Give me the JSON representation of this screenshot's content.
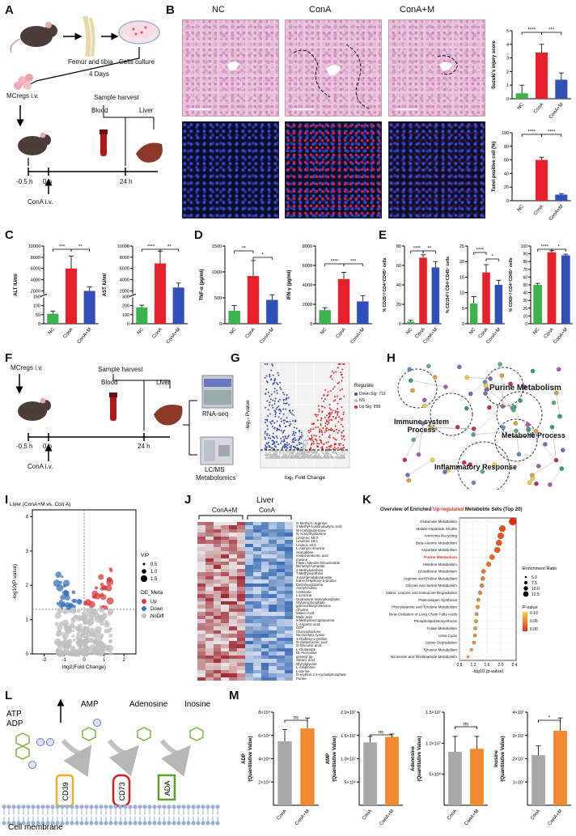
{
  "colors": {
    "nc": "#3cb44b",
    "cona": "#e8202a",
    "conam": "#3050b8",
    "up": "#d83a3a",
    "down": "#3a70b8",
    "gray": "#b0b0b0",
    "orange": "#f08a30",
    "graybar": "#a8a8a8"
  },
  "panels": {
    "A": "A",
    "B": "B",
    "C": "C",
    "D": "D",
    "E": "E",
    "F": "F",
    "G": "G",
    "H": "H",
    "I": "I",
    "J": "J",
    "K": "K",
    "L": "L",
    "M": "M"
  },
  "a": {
    "femur": "Femur and tibia",
    "culture": "Cells culture",
    "days": "4 Days",
    "mcregs": "MCregs i.v.",
    "harvest": "Sample harvest",
    "blood": "Blood",
    "liver": "Liver",
    "t1": "-0.5 h",
    "t2": "0 h",
    "t3": "24 h",
    "cona": "ConA  i.v."
  },
  "b": {
    "nc": "NC",
    "cona": "ConA",
    "conam": "ConA+M",
    "ylab1": "Suzuki's injury score",
    "ylab2": "Tunel positive cell (%)",
    "sig1": "****",
    "sig2": "***",
    "sig3": "****",
    "sig4": "****",
    "cats": [
      "NC",
      "ConA",
      "ConA+M"
    ],
    "ticks1": [
      "0",
      "1",
      "2",
      "3",
      "4",
      "5"
    ],
    "ticks2": [
      "0",
      "20",
      "40",
      "60",
      "80",
      "100"
    ]
  },
  "c": {
    "ylab1": "ALT IU/ml",
    "ylab2": "AST IU/ml",
    "ticks1": [
      "0",
      "50",
      "100",
      "150",
      "2000",
      "4000",
      "6000",
      "8000",
      "10000"
    ],
    "ticks2": [
      "0",
      "100",
      "200",
      "300",
      "2000",
      "4000",
      "6000",
      "8000",
      "10000"
    ],
    "s1": "***",
    "s2": "**",
    "s3": "****",
    "s4": "**",
    "cats": [
      "NC",
      "ConA",
      "ConA+M"
    ]
  },
  "d": {
    "ylab1": "TNF-α (pg/ml)",
    "ylab2": "IFN-γ (pg/ml)",
    "ticks1": [
      "0",
      "500",
      "1000",
      "1500"
    ],
    "ticks2": [
      "0",
      "2000",
      "4000",
      "6000",
      "8000"
    ],
    "s1": "**",
    "s2": "*",
    "s3": "****",
    "s4": "***",
    "cats": [
      "NC",
      "ConA",
      "ConA+M"
    ]
  },
  "e": {
    "ylab1": "% CD25⁺/ CD4⁺CD45⁺ cells",
    "ylab2": "% CD154⁺/ CD4⁺CD45⁺ cells",
    "ylab3": "% CD69⁺/ CD4⁺CD45⁺ cells",
    "ticks1": [
      "0",
      "20",
      "40",
      "60",
      "80"
    ],
    "ticks2": [
      "0",
      "5",
      "10",
      "15",
      "20",
      "25"
    ],
    "ticks3": [
      "0",
      "10",
      "20",
      "30",
      "40",
      "50",
      "60",
      "70",
      "80",
      "90",
      "100"
    ],
    "s1": "****",
    "s2": "**",
    "s3": "****",
    "s4": "*",
    "s5": "****",
    "s6": "*",
    "cats": [
      "NC",
      "ConA",
      "ConA+M"
    ]
  },
  "f": {
    "mcregs": "MCregs i.v.",
    "harvest": "Sample harvest",
    "blood": "Blood",
    "liver": "Liver",
    "t1": "-0.5 h",
    "t2": "0 h",
    "t3": "24 h",
    "cona": "ConA  i.v.",
    "rnaseq": "RNA-seq",
    "lcms1": "LC/MS",
    "lcms2": "Metabolomics"
  },
  "g": {
    "ylab": "-log₁₀ Pvalue",
    "xlab": "log₂ Fold Change",
    "legend_title": "Regulate",
    "down": "Down Sig: 713",
    "ns": "NS",
    "upsig": "Up Sig: 898"
  },
  "h": {
    "purine": "Purine Metabolism",
    "immune1": "Immune system",
    "immune2": "Process",
    "metabolic": "Metabolic Process",
    "inflam": "Inflammatory Response"
  },
  "i": {
    "title": "Liver (ConA+M vs. Con A)",
    "ylab": "-log10(P-value)",
    "xlab": "log2(Fold Change)",
    "vip": "VIP",
    "vip_vals": [
      "0.5",
      "1.0",
      "1.5"
    ],
    "de": "DE_Meta",
    "up": "Up",
    "down": "Down",
    "nodiff": "NoDiff",
    "xticks": [
      "-2",
      "-1",
      "0",
      "1",
      "2"
    ],
    "yticks": [
      "0",
      "1",
      "2",
      "3",
      "4"
    ]
  },
  "j": {
    "title": "Liver",
    "g1": "ConA+M",
    "g2": "ConA",
    "metabolites": [
      "N-Methyl-L-arginine",
      "2-Methyl-4-aminobutyric acid",
      "N-Acetylputrescine",
      "N-Acetyltryptamine",
      "Linolenic 18:3",
      "Linolenic 16:1",
      "Linoleic 18:2",
      "L-Alanyl-L-leucine",
      "Isomaltose",
      "Imidazoleacetic acid",
      "Inosine",
      "Flavin Adenine Dinucleotide",
      "Dimethyl fumarate",
      "3-Methylxanthine",
      "7-Methylxanthine",
      "4-Acetamidobutanoate",
      "trans-3-Hydroxy-L-proline",
      "Cyclohexylamine",
      "Acetylcholine",
      "Cortisone",
      "L-Leucine",
      "Guanosine monophosphate",
      "Glycerophosphate",
      "gamma-Butyrolactone",
      "Choline",
      "Maleic Acid",
      "Malic acid",
      "6-Methylmercaptopurine",
      "L-Aspartic acid",
      "CDP",
      "Gluconolactone",
      "N6-Acetyl-L-lysine",
      "4-Hydroxy-L-proline",
      "D-Galacturonic acid",
      "D-Gluconic acid",
      "L-Glutamate",
      "DL-Norvaline",
      "geranyl pp",
      "Stearic acid",
      "Glycylglycine",
      "L-Arabinose",
      "L-Serine",
      "D-erythrol 2,4-cyclodiphosphate",
      "Purine"
    ]
  },
  "k": {
    "title_pre": "Overview of Enriched ",
    "title_up": "Up-regulated",
    "title_post": " Metabolite Sets (Top 20)",
    "sets": [
      "Glutamate Metabolism",
      "Malate-Aspartate Shuttle",
      "Ammonia Recycling",
      "Beta-Alanine Metabolism",
      "Aspartate Metabolism",
      "Purine Metabolism",
      "Histidine Metabolism",
      "Glutathione Metabolism",
      "Arginine and Proline Metabolism",
      "Glycine and Serine Metabolism",
      "Valine, Leucine and Isoleucine Degradation",
      "Plasmalogen Synthesis",
      "Phenylalanine and Tyrosine Metabolism",
      "Beta-Oxidation of Long Chain Fatty Acids",
      "Phospholipid Biosynthesis",
      "Folate Metabolism",
      "Urea Cycle",
      "Lysine Degradation",
      "Tyrosine Metabolism",
      "Nicotinate and Nicotinamide Metabolism"
    ],
    "values": [
      2.35,
      2.05,
      2.0,
      1.95,
      1.9,
      1.75,
      1.65,
      1.5,
      1.48,
      1.45,
      1.4,
      1.35,
      1.33,
      1.3,
      1.28,
      1.26,
      1.25,
      1.22,
      1.15,
      1.05
    ],
    "xlab": "-log10 (p-value)",
    "xticks": [
      "0.8",
      "1.2",
      "1.6",
      "2.0",
      "2.4"
    ],
    "er_title": "Enrichment Ratio",
    "er_vals": [
      "5.0",
      "7.5",
      "10.0",
      "12.5"
    ],
    "p_title": "P-value",
    "p_vals": [
      "0.10",
      "0.05",
      "0.00"
    ]
  },
  "l": {
    "atp": "ATP",
    "adp": "ADP",
    "amp": "AMP",
    "adenosine": "Adenosine",
    "inosine": "Inosine",
    "cd39": "CD39",
    "cd73": "CD73",
    "ada": "ADA",
    "membrane": "Cell membrane",
    "p": "P"
  },
  "m": {
    "ylab1": "ADP",
    "ylab2": "AMP",
    "ylab3": "Adenosine",
    "ylab4": "Inosine",
    "qv": "(Quantitative Value)",
    "cats": [
      "ConA",
      "ConA+M"
    ],
    "ticks1": [
      "2×10⁴",
      "4×10⁴",
      "6×10⁴",
      "8×10⁴"
    ],
    "ticks2": [
      "5×10⁶",
      "1.0×10⁷",
      "1.5×10⁷",
      "2.0×10⁷"
    ],
    "ticks3": [
      "5×10⁶",
      "1.0×10⁷",
      "1.5×10⁷"
    ],
    "ticks4": [
      "1×10⁷",
      "2×10⁷",
      "3×10⁷",
      "4×10⁷"
    ],
    "s1": "ns",
    "s2": "ns",
    "s3": "ns",
    "s4": "*"
  },
  "chart_data": [
    {
      "type": "bar",
      "title": "Suzuki's injury score",
      "categories": [
        "NC",
        "ConA",
        "ConA+M"
      ],
      "values": [
        0.4,
        3.4,
        1.4
      ],
      "ylim": [
        0,
        5
      ]
    },
    {
      "type": "bar",
      "title": "Tunel positive cell (%)",
      "categories": [
        "NC",
        "ConA",
        "ConA+M"
      ],
      "values": [
        0,
        60,
        9
      ],
      "ylim": [
        0,
        100
      ]
    },
    {
      "type": "bar",
      "title": "ALT IU/ml",
      "categories": [
        "NC",
        "ConA",
        "ConA+M"
      ],
      "values": [
        55,
        6000,
        2000
      ]
    },
    {
      "type": "bar",
      "title": "AST IU/ml",
      "categories": [
        "NC",
        "ConA",
        "ConA+M"
      ],
      "values": [
        180,
        6900,
        2600
      ]
    },
    {
      "type": "bar",
      "title": "TNF-α (pg/ml)",
      "categories": [
        "NC",
        "ConA",
        "ConA+M"
      ],
      "values": [
        250,
        920,
        460
      ],
      "ylim": [
        0,
        1500
      ]
    },
    {
      "type": "bar",
      "title": "IFN-γ (pg/ml)",
      "categories": [
        "NC",
        "ConA",
        "ConA+M"
      ],
      "values": [
        1400,
        4600,
        2300
      ],
      "ylim": [
        0,
        8000
      ]
    },
    {
      "type": "bar",
      "title": "% CD25+/CD4+CD45+ cells",
      "categories": [
        "NC",
        "ConA",
        "ConA+M"
      ],
      "values": [
        2,
        68,
        58
      ],
      "ylim": [
        0,
        80
      ]
    },
    {
      "type": "bar",
      "title": "% CD154+/CD4+CD45+ cells",
      "categories": [
        "NC",
        "ConA",
        "ConA+M"
      ],
      "values": [
        6.5,
        16.5,
        12.5
      ],
      "ylim": [
        0,
        25
      ]
    },
    {
      "type": "bar",
      "title": "% CD69+/CD4+CD45+ cells",
      "categories": [
        "NC",
        "ConA",
        "ConA+M"
      ],
      "values": [
        50,
        92,
        88
      ],
      "ylim": [
        0,
        100
      ]
    },
    {
      "type": "bar",
      "title": "ADP",
      "categories": [
        "ConA",
        "ConA+M"
      ],
      "values": [
        55000,
        66000
      ],
      "ylim": [
        0,
        80000
      ]
    },
    {
      "type": "bar",
      "title": "AMP",
      "categories": [
        "ConA",
        "ConA+M"
      ],
      "values": [
        13500000,
        14700000
      ],
      "ylim": [
        0,
        20000000
      ]
    },
    {
      "type": "bar",
      "title": "Adenosine",
      "categories": [
        "ConA",
        "ConA+M"
      ],
      "values": [
        8600000,
        9100000
      ],
      "ylim": [
        0,
        15000000
      ]
    },
    {
      "type": "bar",
      "title": "Inosine",
      "categories": [
        "ConA",
        "ConA+M"
      ],
      "values": [
        21500000,
        32000000
      ],
      "ylim": [
        0,
        40000000
      ]
    }
  ]
}
